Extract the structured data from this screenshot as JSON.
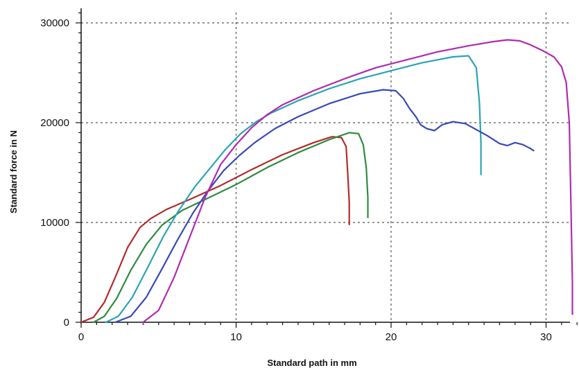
{
  "chart_data": {
    "type": "line",
    "title": "",
    "xlabel": "Standard path in mm",
    "ylabel": "Standard force in N",
    "xlim": [
      0,
      32
    ],
    "ylim": [
      0,
      31000
    ],
    "xticks": [
      0,
      10,
      20,
      30
    ],
    "yticks": [
      0,
      10000,
      20000,
      30000
    ],
    "grid": true,
    "legend": "none",
    "series": [
      {
        "color": "#b22a2a",
        "x": [
          0,
          0.8,
          1.5,
          2.2,
          3,
          3.8,
          4.5,
          5.5,
          7,
          9,
          11,
          13,
          15,
          16.2,
          16.8,
          17.1,
          17.2,
          17.3,
          17.3
        ],
        "y": [
          0,
          500,
          2000,
          4500,
          7500,
          9500,
          10400,
          11300,
          12300,
          13700,
          15300,
          16800,
          18000,
          18600,
          18500,
          17600,
          15000,
          12000,
          9800
        ]
      },
      {
        "color": "#2e8b3e",
        "x": [
          0.8,
          1.5,
          2.3,
          3.2,
          4.2,
          5.2,
          6.5,
          8,
          10,
          12,
          14,
          16,
          17.3,
          17.9,
          18.2,
          18.4,
          18.5,
          18.5
        ],
        "y": [
          0,
          600,
          2400,
          5200,
          7800,
          9700,
          11200,
          12300,
          13800,
          15500,
          17000,
          18300,
          19000,
          18900,
          17800,
          15500,
          12500,
          10500
        ]
      },
      {
        "color": "#2aa3b5",
        "x": [
          1.6,
          2.4,
          3.3,
          4.3,
          5.3,
          6.3,
          7.3,
          8.3,
          9.3,
          10.3,
          11.3,
          12.3,
          14,
          16,
          18,
          20,
          22,
          24,
          25,
          25.5,
          25.7,
          25.8,
          25.8
        ],
        "y": [
          0,
          600,
          2500,
          5500,
          8600,
          11200,
          13500,
          15400,
          17300,
          18900,
          20100,
          21000,
          22200,
          23400,
          24400,
          25200,
          26000,
          26600,
          26700,
          25500,
          22000,
          18000,
          14800
        ]
      },
      {
        "color": "#3848b8",
        "x": [
          2.2,
          3.2,
          4.2,
          5.2,
          6.2,
          7.2,
          8.2,
          9.2,
          10.2,
          11.2,
          12.5,
          14,
          16,
          18,
          19.5,
          20.3,
          20.8,
          21.2,
          21.6,
          21.9,
          22.3,
          22.8,
          23.3,
          24,
          24.8,
          25.5,
          26.2,
          27,
          27.5,
          28,
          28.5,
          29,
          29.2
        ],
        "y": [
          0,
          600,
          2500,
          5300,
          8200,
          10900,
          13200,
          15200,
          16700,
          18000,
          19400,
          20600,
          21900,
          22900,
          23300,
          23200,
          22400,
          21400,
          20600,
          19800,
          19400,
          19200,
          19800,
          20100,
          19900,
          19300,
          18700,
          17900,
          17700,
          18000,
          17800,
          17400,
          17200
        ]
      },
      {
        "color": "#b02ab0",
        "x": [
          4,
          5,
          6,
          7,
          8,
          9,
          10,
          11,
          12,
          13,
          15,
          17,
          19,
          21,
          23,
          25,
          26.5,
          27.5,
          28.3,
          29,
          29.8,
          30.5,
          31,
          31.3,
          31.5,
          31.6,
          31.7,
          31.7
        ],
        "y": [
          0,
          1200,
          4500,
          8500,
          12500,
          15800,
          17800,
          19500,
          20800,
          21800,
          23200,
          24400,
          25500,
          26300,
          27100,
          27700,
          28100,
          28300,
          28200,
          27800,
          27200,
          26600,
          25600,
          24000,
          20000,
          12000,
          4000,
          800
        ]
      }
    ]
  }
}
